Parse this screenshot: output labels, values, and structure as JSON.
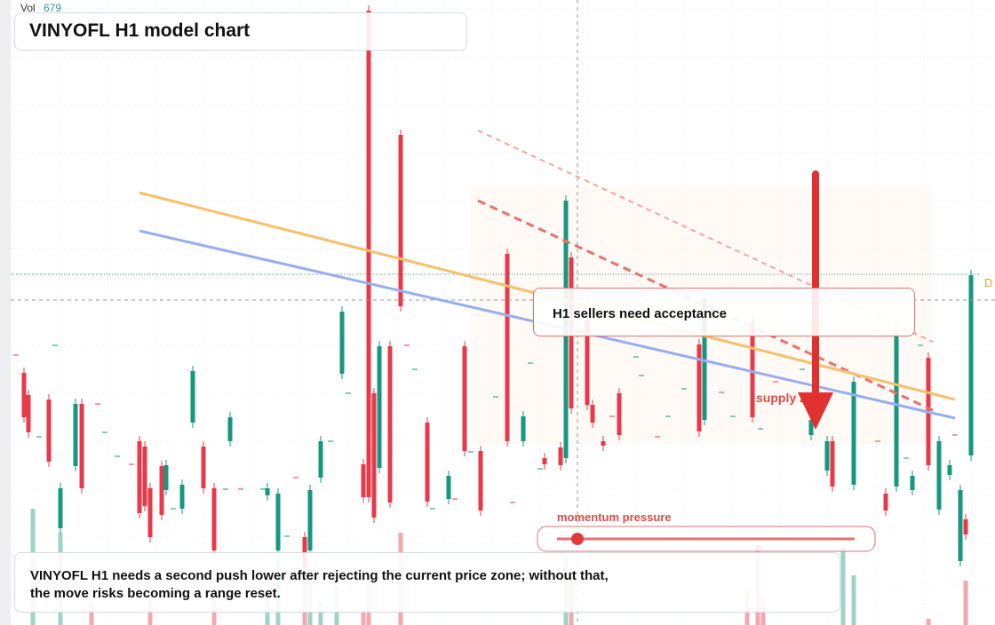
{
  "header": {
    "vol_label": "Vol",
    "vol_value": 679
  },
  "title": "VINYOFL H1 model chart",
  "callout": "H1 sellers need acceptance",
  "zone_label": "supply zone",
  "slider_label": "momentum pressure",
  "axis_badge": "D",
  "note": {
    "lines": [
      "VINYOFL H1 needs a second push lower after rejecting the current price zone; without that,",
      "the move risks becoming a range reset."
    ]
  }
}
